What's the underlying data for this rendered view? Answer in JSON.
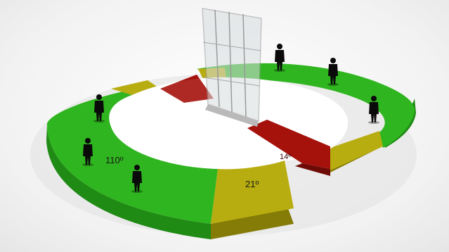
{
  "diagram": {
    "angle_labels": {
      "green_sector": "110º",
      "yellow_sector": "21º",
      "red_sector": "14º"
    },
    "colors": {
      "background": "#f4f4f4",
      "green_top": "#2fb51f",
      "green_side": "#1f8a14",
      "yellow_top": "#b8ad10",
      "yellow_side": "#857c08",
      "red_top": "#a5120c",
      "red_side": "#6e0b07",
      "inner_floor": "#ffffff",
      "screen_frame": "#9a9a9a",
      "screen_glass": "#d8dde0",
      "figure": "#0a0a0a"
    },
    "icons": [
      "standing-person-icon",
      "glass-screen-icon"
    ]
  }
}
